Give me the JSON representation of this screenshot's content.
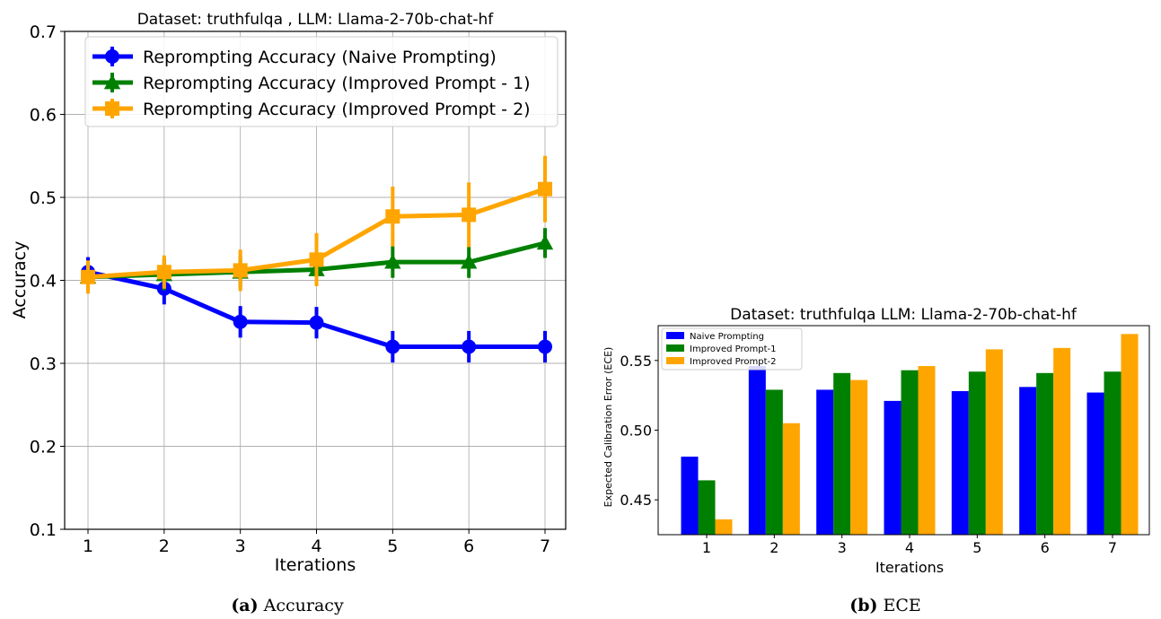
{
  "chart_data": [
    {
      "type": "line",
      "title": "Dataset: truthfulqa , LLM: Llama-2-70b-chat-hf",
      "xlabel": "Iterations",
      "ylabel": "Accuracy",
      "x": [
        1,
        2,
        3,
        4,
        5,
        6,
        7
      ],
      "xlim": [
        0.7,
        7.3
      ],
      "ylim": [
        0.1,
        0.7
      ],
      "yticks": [
        0.1,
        0.2,
        0.3,
        0.4,
        0.5,
        0.6,
        0.7
      ],
      "yticklabels": [
        "0.1",
        "0.2",
        "0.3",
        "0.4",
        "0.5",
        "0.6",
        "0.7"
      ],
      "xticklabels": [
        "1",
        "2",
        "3",
        "4",
        "5",
        "6",
        "7"
      ],
      "grid": true,
      "legend": "top-left",
      "series": [
        {
          "name": "Reprompting Accuracy (Naive Prompting)",
          "color": "#0000ff",
          "marker": "circle",
          "values": [
            0.41,
            0.39,
            0.35,
            0.349,
            0.32,
            0.32,
            0.32
          ],
          "errors": [
            0.018,
            0.019,
            0.019,
            0.019,
            0.019,
            0.019,
            0.019
          ]
        },
        {
          "name": "Reprompting Accuracy (Improved Prompt - 1)",
          "color": "#008000",
          "marker": "triangle",
          "values": [
            0.404,
            0.407,
            0.41,
            0.413,
            0.422,
            0.422,
            0.445
          ],
          "errors": [
            0.018,
            0.019,
            0.019,
            0.019,
            0.019,
            0.019,
            0.018
          ]
        },
        {
          "name": "Reprompting Accuracy (Improved Prompt - 2)",
          "color": "#ffa500",
          "marker": "square",
          "values": [
            0.404,
            0.41,
            0.412,
            0.425,
            0.477,
            0.479,
            0.51
          ],
          "errors": [
            0.02,
            0.02,
            0.025,
            0.032,
            0.036,
            0.039,
            0.04
          ]
        }
      ],
      "caption_label": "(a)",
      "caption_text": " Accuracy"
    },
    {
      "type": "bar",
      "title": "Dataset: truthfulqa  LLM: Llama-2-70b-chat-hf",
      "xlabel": "Iterations",
      "ylabel": "Expected Calibration Error (ECE)",
      "categories": [
        "1",
        "2",
        "3",
        "4",
        "5",
        "6",
        "7"
      ],
      "ylim": [
        0.425,
        0.575
      ],
      "yticks": [
        0.45,
        0.5,
        0.55
      ],
      "yticklabels": [
        "0.45",
        "0.50",
        "0.55"
      ],
      "grid": false,
      "legend": "top-left",
      "series": [
        {
          "name": "Naive Prompting",
          "color": "#0000ff",
          "values": [
            0.481,
            0.546,
            0.529,
            0.521,
            0.528,
            0.531,
            0.527
          ]
        },
        {
          "name": "Improved Prompt-1",
          "color": "#008000",
          "values": [
            0.464,
            0.529,
            0.541,
            0.543,
            0.542,
            0.541,
            0.542
          ]
        },
        {
          "name": "Improved Prompt-2",
          "color": "#ffa500",
          "values": [
            0.436,
            0.505,
            0.536,
            0.546,
            0.558,
            0.559,
            0.569
          ]
        }
      ],
      "caption_label": "(b)",
      "caption_text": " ECE"
    }
  ]
}
